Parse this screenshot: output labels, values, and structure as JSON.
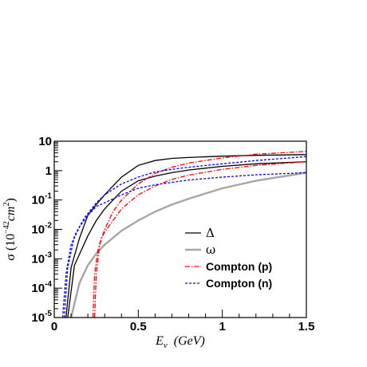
{
  "chart_data": {
    "type": "line",
    "xlabel_main": "E",
    "xlabel_sub": "ν",
    "xlabel_unit": "(GeV)",
    "ylabel_main": "σ (10",
    "ylabel_exp": "−42",
    "ylabel_unit": "cm",
    "ylabel_unit_exp": "2",
    "ylabel_close": ")",
    "xlim": [
      0,
      1.5
    ],
    "ylim": [
      1e-05,
      10
    ],
    "y_scale": "log",
    "grid": false,
    "legend_position": "lower-right",
    "x_ticks": [
      {
        "value": 0,
        "label": "0"
      },
      {
        "value": 0.5,
        "label": "0.5"
      },
      {
        "value": 1,
        "label": "1"
      },
      {
        "value": 1.5,
        "label": "1.5"
      }
    ],
    "y_ticks": [
      {
        "value": 10,
        "label": "10"
      },
      {
        "value": 1,
        "label": "1"
      },
      {
        "value": 0.1,
        "base": "10",
        "exp": "-1"
      },
      {
        "value": 0.01,
        "base": "10",
        "exp": "-2"
      },
      {
        "value": 0.001,
        "base": "10",
        "exp": "-3"
      },
      {
        "value": 0.0001,
        "base": "10",
        "exp": "-4"
      },
      {
        "value": 1e-05,
        "base": "10",
        "exp": "-5"
      }
    ],
    "series": [
      {
        "name": "Δ",
        "color": "#000000",
        "style": "solid",
        "lines": [
          {
            "x": [
              0.07,
              0.1,
              0.15,
              0.2,
              0.25,
              0.3,
              0.35,
              0.4,
              0.5,
              0.6,
              0.7,
              0.8,
              1.0,
              1.2,
              1.5
            ],
            "y": [
              1e-05,
              0.0005,
              0.005,
              0.03,
              0.07,
              0.15,
              0.3,
              0.6,
              1.5,
              2.2,
              2.6,
              2.8,
              3.1,
              3.3,
              3.5
            ]
          },
          {
            "x": [
              0.08,
              0.12,
              0.2,
              0.25,
              0.3,
              0.35,
              0.4,
              0.5,
              0.6,
              0.7,
              0.8,
              1.0,
              1.2,
              1.5
            ],
            "y": [
              1e-05,
              0.0006,
              0.006,
              0.02,
              0.05,
              0.1,
              0.2,
              0.45,
              0.65,
              0.85,
              1.05,
              1.4,
              1.7,
              2.0
            ]
          }
        ]
      },
      {
        "name": "ω",
        "color": "#a6a6a6",
        "style": "solid",
        "lines": [
          {
            "x": [
              0.1,
              0.15,
              0.2,
              0.25,
              0.3,
              0.4,
              0.5,
              0.6,
              0.7,
              0.8,
              1.0,
              1.2,
              1.5
            ],
            "y": [
              1e-05,
              0.00015,
              0.0006,
              0.0015,
              0.003,
              0.009,
              0.02,
              0.04,
              0.07,
              0.11,
              0.25,
              0.45,
              0.85
            ]
          }
        ]
      },
      {
        "name": "Compton (p)",
        "color": "#ff0000",
        "style": "dashdot",
        "lines": [
          {
            "x": [
              0.23,
              0.24,
              0.26,
              0.28,
              0.3,
              0.35,
              0.4,
              0.5,
              0.6,
              0.7,
              0.8,
              1.0,
              1.2,
              1.5
            ],
            "y": [
              1e-05,
              0.0003,
              0.002,
              0.005,
              0.008,
              0.02,
              0.05,
              0.15,
              0.3,
              0.5,
              0.7,
              1.1,
              1.5,
              2.0
            ]
          },
          {
            "x": [
              0.24,
              0.25,
              0.27,
              0.3,
              0.35,
              0.4,
              0.5,
              0.6,
              0.7,
              0.8,
              1.0,
              1.2,
              1.5
            ],
            "y": [
              1e-05,
              0.0003,
              0.003,
              0.01,
              0.04,
              0.1,
              0.35,
              0.8,
              1.3,
              1.8,
              2.7,
              3.6,
              4.5
            ]
          }
        ]
      },
      {
        "name": "Compton (n)",
        "color": "#0000ff",
        "style": "dashed",
        "lines": [
          {
            "x": [
              0.05,
              0.07,
              0.1,
              0.15,
              0.2,
              0.25,
              0.3,
              0.4,
              0.5,
              0.6,
              0.8,
              1.0,
              1.2,
              1.5
            ],
            "y": [
              1e-05,
              0.0003,
              0.003,
              0.012,
              0.03,
              0.06,
              0.08,
              0.15,
              0.25,
              0.33,
              0.48,
              0.6,
              0.72,
              0.85
            ]
          },
          {
            "x": [
              0.06,
              0.08,
              0.12,
              0.18,
              0.25,
              0.3,
              0.4,
              0.5,
              0.6,
              0.7,
              0.8,
              1.0,
              1.2,
              1.5
            ],
            "y": [
              1e-05,
              0.0005,
              0.006,
              0.025,
              0.08,
              0.15,
              0.35,
              0.6,
              0.9,
              1.1,
              1.3,
              1.7,
              2.2,
              3.0
            ]
          }
        ]
      }
    ],
    "legend": [
      {
        "label": "Δ",
        "color": "#000000",
        "style": "solid"
      },
      {
        "label": "ω",
        "color": "#a6a6a6",
        "style": "solid"
      },
      {
        "label": "Compton (p)",
        "color": "#ff0000",
        "style": "dashdot"
      },
      {
        "label": "Compton (n)",
        "color": "#0000ff",
        "style": "dashed"
      }
    ]
  }
}
